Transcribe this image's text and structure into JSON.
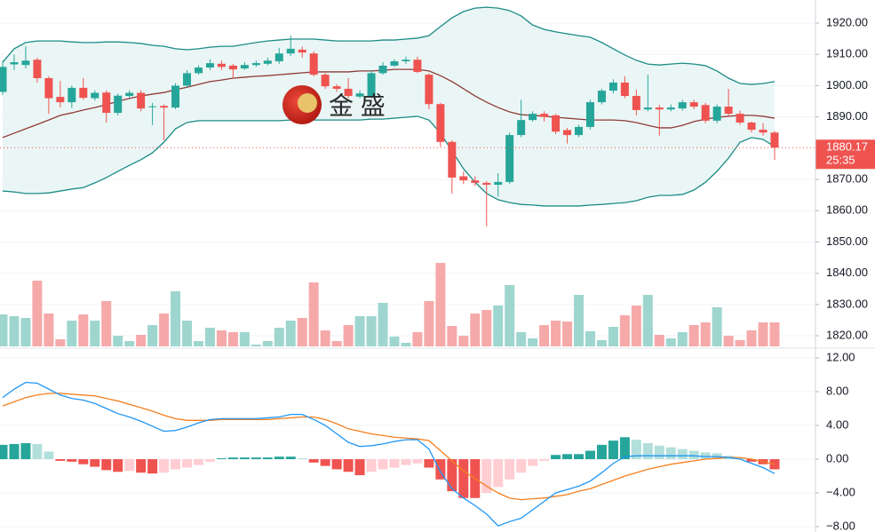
{
  "chart_data": [
    {
      "type": "candlestick",
      "open": [
        1898.0,
        1906.8,
        1906.6,
        1908.3,
        1902.4,
        1896.4,
        1894.7,
        1899.3,
        1896.0,
        1897.8,
        1891.3,
        1896.7,
        1897.7,
        1893.2,
        1893.5,
        1893.0,
        1900.0,
        1904.0,
        1905.8,
        1907.0,
        1906.4,
        1905.5,
        1906.6,
        1907.0,
        1907.8,
        1910.3,
        1911.5,
        1910.3,
        1903.5,
        1899.8,
        1899.0,
        1896.5,
        1896.7,
        1904.0,
        1906.4,
        1907.8,
        1908.3,
        1903.5,
        1894.1,
        1882.0,
        1871.0,
        1869.7,
        1868.9,
        1868.3,
        1869.2,
        1884.2,
        1889.0,
        1891.0,
        1890.5,
        1885.8,
        1884.2,
        1886.8,
        1894.7,
        1898.4,
        1901.0,
        1896.7,
        1892.4,
        1893.0,
        1892.4,
        1892.7,
        1894.7,
        1893.8,
        1888.8,
        1893.3,
        1891.0,
        1888.2,
        1885.9,
        1885.0
      ],
      "high": [
        1908.0,
        1910.0,
        1912.6,
        1909.0,
        1903.0,
        1901.5,
        1900.0,
        1902.4,
        1898.5,
        1898.5,
        1897.5,
        1898.5,
        1898.5,
        1894.5,
        1894.0,
        1900.8,
        1905.0,
        1906.5,
        1908.5,
        1908.0,
        1907.0,
        1907.5,
        1908.0,
        1909.0,
        1912.0,
        1916.0,
        1912.5,
        1911.0,
        1904.0,
        1900.5,
        1902.4,
        1898.5,
        1905.0,
        1907.5,
        1908.5,
        1909.3,
        1909.3,
        1904.0,
        1894.5,
        1882.5,
        1872.5,
        1871.0,
        1869.5,
        1872.0,
        1885.0,
        1895.5,
        1891.8,
        1891.8,
        1891.0,
        1886.5,
        1887.5,
        1895.5,
        1899.0,
        1902.0,
        1903.0,
        1898.7,
        1903.5,
        1893.8,
        1894.0,
        1895.5,
        1895.5,
        1894.5,
        1894.0,
        1899.0,
        1892.0,
        1888.5,
        1888.0,
        1885.5
      ],
      "low": [
        1897.0,
        1905.0,
        1905.5,
        1901.0,
        1891.0,
        1893.0,
        1892.9,
        1895.5,
        1895.2,
        1888.2,
        1890.5,
        1896.0,
        1891.8,
        1887.4,
        1882.5,
        1892.5,
        1899.5,
        1903.5,
        1905.0,
        1905.0,
        1902.4,
        1905.0,
        1906.0,
        1906.5,
        1907.0,
        1909.5,
        1909.0,
        1903.0,
        1899.0,
        1898.0,
        1896.0,
        1896.0,
        1896.0,
        1903.5,
        1906.0,
        1907.0,
        1904.0,
        1892.5,
        1880.5,
        1865.5,
        1868.5,
        1868.0,
        1855.0,
        1864.5,
        1868.5,
        1883.5,
        1888.5,
        1888.5,
        1884.5,
        1881.5,
        1883.5,
        1886.0,
        1894.0,
        1897.5,
        1896.0,
        1890.5,
        1891.8,
        1884.0,
        1891.8,
        1892.0,
        1892.5,
        1888.0,
        1888.0,
        1890.0,
        1887.5,
        1885.0,
        1884.0,
        1876.2
      ],
      "close": [
        1906.0,
        1907.5,
        1908.0,
        1902.4,
        1896.0,
        1894.7,
        1899.3,
        1896.1,
        1897.7,
        1891.3,
        1896.8,
        1897.7,
        1892.7,
        1893.4,
        1893.0,
        1900.0,
        1904.0,
        1905.8,
        1907.2,
        1906.0,
        1905.2,
        1906.6,
        1907.2,
        1908.0,
        1910.3,
        1911.8,
        1910.6,
        1903.5,
        1899.8,
        1899.0,
        1896.7,
        1897.5,
        1904.0,
        1906.4,
        1907.8,
        1908.3,
        1904.4,
        1894.1,
        1882.0,
        1870.6,
        1869.7,
        1868.9,
        1868.3,
        1869.2,
        1884.2,
        1889.0,
        1891.0,
        1890.0,
        1885.3,
        1884.2,
        1886.8,
        1894.7,
        1898.4,
        1901.0,
        1896.7,
        1892.2,
        1893.0,
        1892.4,
        1893.0,
        1894.7,
        1893.3,
        1888.8,
        1893.3,
        1891.0,
        1888.2,
        1885.9,
        1885.0,
        1880.17
      ],
      "colors": {
        "up": "#26a69a",
        "down": "#ef5350"
      },
      "volume": {
        "values": [
          36,
          34,
          32,
          74,
          37,
          8,
          29,
          36,
          29,
          51,
          12,
          6,
          13,
          24,
          37,
          62,
          29,
          6,
          21,
          18,
          16,
          16,
          2,
          6,
          21,
          29,
          32,
          72,
          18,
          6,
          24,
          34,
          34,
          49,
          11,
          4,
          16,
          51,
          94,
          23,
          12,
          37,
          41,
          46,
          69,
          16,
          9,
          24,
          29,
          28,
          58,
          17,
          7,
          22,
          35,
          46,
          58,
          13,
          9,
          16,
          24,
          27,
          44,
          12,
          7,
          18,
          27,
          27
        ],
        "ylim": [
          0,
          390
        ],
        "colors": {
          "up": "#9ed6cf",
          "down": "#f6a9a9"
        }
      },
      "bollinger": {
        "upper": [
          1907.5,
          1911.8,
          1913.8,
          1914.3,
          1914.3,
          1914.3,
          1914.0,
          1913.8,
          1913.8,
          1914.0,
          1914.0,
          1913.8,
          1913.5,
          1912.9,
          1912.6,
          1911.8,
          1911.5,
          1911.8,
          1912.3,
          1912.6,
          1912.6,
          1913.2,
          1913.8,
          1914.3,
          1914.6,
          1914.9,
          1914.9,
          1914.9,
          1914.6,
          1914.3,
          1914.3,
          1914.3,
          1914.3,
          1914.6,
          1914.6,
          1914.9,
          1915.2,
          1916.0,
          1918.9,
          1921.7,
          1923.7,
          1924.8,
          1925.1,
          1924.8,
          1924.0,
          1922.3,
          1919.4,
          1918.0,
          1917.2,
          1916.6,
          1916.0,
          1915.5,
          1913.8,
          1911.8,
          1909.8,
          1908.1,
          1906.9,
          1906.6,
          1906.9,
          1907.2,
          1906.9,
          1906.4,
          1904.7,
          1902.4,
          1900.7,
          1900.4,
          1900.7,
          1901.3
        ],
        "middle": [
          1883.4,
          1884.8,
          1886.2,
          1887.6,
          1889.0,
          1890.5,
          1891.3,
          1892.2,
          1893.0,
          1893.9,
          1895.0,
          1895.9,
          1896.7,
          1897.3,
          1897.8,
          1898.7,
          1899.5,
          1900.4,
          1901.3,
          1901.8,
          1902.4,
          1902.7,
          1903.0,
          1903.2,
          1903.5,
          1903.8,
          1904.1,
          1904.4,
          1904.4,
          1904.4,
          1904.4,
          1904.7,
          1904.7,
          1904.9,
          1905.2,
          1905.2,
          1905.2,
          1904.7,
          1903.2,
          1901.3,
          1899.0,
          1896.7,
          1894.7,
          1893.0,
          1891.6,
          1890.7,
          1890.5,
          1890.2,
          1889.9,
          1889.6,
          1889.3,
          1889.0,
          1889.0,
          1889.0,
          1888.8,
          1888.2,
          1887.3,
          1886.5,
          1886.5,
          1887.3,
          1888.5,
          1889.3,
          1889.9,
          1890.2,
          1890.5,
          1890.5,
          1890.2,
          1889.6
        ],
        "lower": [
          1866.3,
          1866.0,
          1865.5,
          1865.5,
          1865.7,
          1866.3,
          1866.9,
          1867.4,
          1868.9,
          1870.6,
          1872.6,
          1874.5,
          1876.3,
          1878.5,
          1881.9,
          1886.2,
          1888.2,
          1888.8,
          1888.8,
          1888.8,
          1888.8,
          1888.8,
          1888.8,
          1888.8,
          1888.8,
          1889.0,
          1889.0,
          1889.0,
          1889.0,
          1889.0,
          1889.0,
          1889.0,
          1889.3,
          1889.3,
          1889.6,
          1889.9,
          1890.2,
          1889.0,
          1884.8,
          1879.1,
          1873.4,
          1869.1,
          1865.5,
          1863.5,
          1862.6,
          1862.0,
          1861.8,
          1861.5,
          1861.5,
          1861.5,
          1861.5,
          1861.8,
          1862.0,
          1862.3,
          1862.6,
          1863.2,
          1864.3,
          1864.9,
          1864.9,
          1865.2,
          1866.6,
          1869.1,
          1872.6,
          1876.8,
          1881.9,
          1883.4,
          1882.8,
          1880.5
        ],
        "color": "#1b8c86",
        "middle_color": "#8e3b36",
        "fill": "#eaf6f5"
      },
      "ylim": [
        1816.6,
        1927.4
      ],
      "yticks": [
        {
          "value": 1920,
          "label": "1920.00"
        },
        {
          "value": 1910,
          "label": "1910.00"
        },
        {
          "value": 1900,
          "label": "1900.00"
        },
        {
          "value": 1890,
          "label": "1890.00"
        },
        {
          "value": 1870,
          "label": "1870.00"
        },
        {
          "value": 1860,
          "label": "1860.00"
        },
        {
          "value": 1850,
          "label": "1850.00"
        },
        {
          "value": 1840,
          "label": "1840.00"
        },
        {
          "value": 1830,
          "label": "1830.00"
        },
        {
          "value": 1820,
          "label": "1820.00"
        }
      ],
      "grid": true,
      "countdown": "25:35",
      "watermark": "金 盛"
    },
    {
      "type": "macd",
      "histogram": [
        1.7,
        1.8,
        1.9,
        1.8,
        0.9,
        -0.2,
        -0.3,
        -0.6,
        -0.9,
        -1.3,
        -1.5,
        -1.4,
        -1.6,
        -1.7,
        -1.6,
        -1.2,
        -1.0,
        -0.7,
        -0.3,
        0.1,
        0.2,
        0.2,
        0.2,
        0.2,
        0.3,
        0.3,
        0.1,
        -0.4,
        -0.8,
        -1.2,
        -1.5,
        -1.9,
        -1.5,
        -1.2,
        -1.0,
        -0.7,
        -0.5,
        -1.0,
        -2.4,
        -3.8,
        -4.6,
        -4.6,
        -4.0,
        -3.3,
        -2.4,
        -1.6,
        -0.8,
        -0.2,
        0.5,
        0.6,
        0.6,
        1.0,
        1.7,
        2.2,
        2.6,
        2.3,
        1.9,
        1.6,
        1.4,
        1.2,
        1.0,
        0.8,
        0.7,
        0.4,
        0.1,
        -0.3,
        -0.6,
        -1.2
      ],
      "hist_colors": {
        "up": "#26a69a",
        "up_fading": "#b2dfdb",
        "down": "#ef5350",
        "down_fading": "#ffcdd2"
      },
      "dif": {
        "values": [
          7.3,
          8.3,
          9.1,
          9.0,
          8.3,
          7.6,
          7.2,
          7.0,
          6.6,
          6.0,
          5.4,
          5.0,
          4.5,
          3.9,
          3.3,
          3.4,
          3.8,
          4.3,
          4.7,
          4.8,
          4.8,
          4.8,
          4.8,
          4.9,
          5.0,
          5.3,
          5.3,
          4.7,
          4.0,
          3.0,
          2.0,
          1.5,
          1.6,
          1.8,
          2.1,
          2.3,
          2.3,
          1.2,
          -1.5,
          -3.5,
          -4.6,
          -5.5,
          -6.5,
          -7.9,
          -7.4,
          -7.0,
          -6.0,
          -5.0,
          -4.0,
          -3.6,
          -3.2,
          -2.6,
          -1.6,
          -0.5,
          0.3,
          0.4,
          0.4,
          0.4,
          0.4,
          0.4,
          0.4,
          0.3,
          0.3,
          0.2,
          0.0,
          -0.5,
          -1.0,
          -1.7
        ],
        "color": "#2196f3"
      },
      "dea": {
        "values": [
          6.3,
          6.8,
          7.3,
          7.6,
          7.8,
          7.8,
          7.7,
          7.6,
          7.5,
          7.2,
          6.9,
          6.5,
          6.1,
          5.7,
          5.2,
          4.8,
          4.6,
          4.6,
          4.6,
          4.7,
          4.7,
          4.7,
          4.7,
          4.7,
          4.8,
          4.9,
          5.0,
          5.0,
          4.7,
          4.2,
          3.6,
          3.3,
          3.0,
          2.8,
          2.6,
          2.5,
          2.4,
          2.2,
          1.0,
          -0.2,
          -1.4,
          -2.3,
          -3.2,
          -4.0,
          -4.6,
          -4.8,
          -4.7,
          -4.6,
          -4.4,
          -4.2,
          -3.8,
          -3.5,
          -3.0,
          -2.5,
          -2.0,
          -1.6,
          -1.2,
          -0.9,
          -0.6,
          -0.4,
          -0.2,
          0.0,
          0.1,
          0.2,
          0.2,
          0.0,
          -0.3,
          -0.6
        ],
        "color": "#f57f20"
      },
      "ylim": [
        -8.63,
        13.05
      ],
      "yticks": [
        {
          "value": 12,
          "label": "12.00"
        },
        {
          "value": 8,
          "label": "8.00"
        },
        {
          "value": 4,
          "label": "4.00"
        },
        {
          "value": 0,
          "label": "0.00"
        },
        {
          "value": -4,
          "label": "−4.00"
        },
        {
          "value": -8,
          "label": "−8.00"
        }
      ],
      "grid": true
    }
  ]
}
